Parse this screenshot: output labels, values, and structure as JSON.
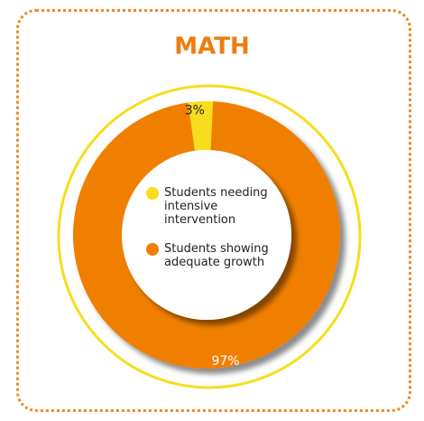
{
  "chart_data": {
    "type": "pie",
    "title": "MATH",
    "categories": [
      "Students needing intensive intervention",
      "Students showing adequate growth"
    ],
    "values": [
      3,
      97
    ],
    "value_labels": [
      "3%",
      "97%"
    ],
    "colors": [
      "#f7dd1c",
      "#f07f00"
    ]
  }
}
